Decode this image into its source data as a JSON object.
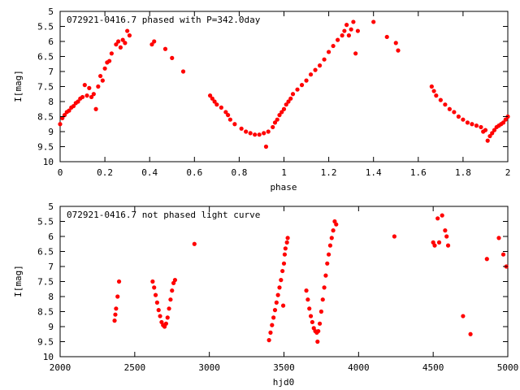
{
  "chart_data": [
    {
      "type": "scatter",
      "title": "072921-0416.7 phased with P=342.0day",
      "xlabel": "phase",
      "ylabel": "I[mag]",
      "xlim": [
        0,
        2
      ],
      "ylim": [
        10,
        5
      ],
      "y_inverted": true,
      "grid": false,
      "marker_color": "#ff0000",
      "x_ticks": [
        "0",
        "0.2",
        "0.4",
        "0.6",
        "0.8",
        "1",
        "1.2",
        "1.4",
        "1.6",
        "1.8",
        "2"
      ],
      "y_ticks": [
        "5",
        "5.5",
        "6",
        "6.5",
        "7",
        "7.5",
        "8",
        "8.5",
        "9",
        "9.5",
        "10"
      ],
      "series": [
        {
          "points": [
            [
              0.0,
              8.75
            ],
            [
              0.01,
              8.55
            ],
            [
              0.02,
              8.45
            ],
            [
              0.03,
              8.35
            ],
            [
              0.04,
              8.3
            ],
            [
              0.05,
              8.2
            ],
            [
              0.06,
              8.15
            ],
            [
              0.07,
              8.05
            ],
            [
              0.08,
              8.0
            ],
            [
              0.09,
              7.9
            ],
            [
              0.1,
              7.85
            ],
            [
              0.11,
              7.45
            ],
            [
              0.12,
              7.8
            ],
            [
              0.13,
              7.55
            ],
            [
              0.14,
              7.85
            ],
            [
              0.15,
              7.75
            ],
            [
              0.16,
              8.25
            ],
            [
              0.17,
              7.5
            ],
            [
              0.18,
              7.15
            ],
            [
              0.19,
              7.3
            ],
            [
              0.2,
              6.9
            ],
            [
              0.21,
              6.7
            ],
            [
              0.22,
              6.65
            ],
            [
              0.23,
              6.4
            ],
            [
              0.25,
              6.1
            ],
            [
              0.26,
              6.0
            ],
            [
              0.27,
              6.2
            ],
            [
              0.28,
              5.95
            ],
            [
              0.29,
              6.05
            ],
            [
              0.3,
              5.65
            ],
            [
              0.31,
              5.8
            ],
            [
              0.41,
              6.1
            ],
            [
              0.42,
              6.0
            ],
            [
              0.47,
              6.25
            ],
            [
              0.5,
              6.55
            ],
            [
              0.55,
              7.0
            ],
            [
              0.67,
              7.8
            ],
            [
              0.68,
              7.9
            ],
            [
              0.69,
              8.0
            ],
            [
              0.7,
              8.1
            ],
            [
              0.72,
              8.2
            ],
            [
              0.74,
              8.35
            ],
            [
              0.75,
              8.45
            ],
            [
              0.76,
              8.6
            ],
            [
              0.78,
              8.75
            ],
            [
              0.81,
              8.9
            ],
            [
              0.83,
              9.0
            ],
            [
              0.85,
              9.05
            ],
            [
              0.87,
              9.1
            ],
            [
              0.89,
              9.1
            ],
            [
              0.91,
              9.05
            ],
            [
              0.92,
              9.5
            ],
            [
              0.93,
              9.0
            ],
            [
              0.95,
              8.85
            ],
            [
              0.96,
              8.7
            ],
            [
              0.97,
              8.6
            ],
            [
              0.98,
              8.45
            ],
            [
              0.99,
              8.35
            ],
            [
              1.0,
              8.25
            ],
            [
              1.01,
              8.1
            ],
            [
              1.02,
              8.0
            ],
            [
              1.03,
              7.9
            ],
            [
              1.04,
              7.75
            ],
            [
              1.06,
              7.6
            ],
            [
              1.08,
              7.45
            ],
            [
              1.1,
              7.3
            ],
            [
              1.12,
              7.1
            ],
            [
              1.14,
              6.95
            ],
            [
              1.16,
              6.8
            ],
            [
              1.18,
              6.6
            ],
            [
              1.2,
              6.35
            ],
            [
              1.22,
              6.15
            ],
            [
              1.24,
              5.95
            ],
            [
              1.26,
              5.8
            ],
            [
              1.27,
              5.65
            ],
            [
              1.28,
              5.45
            ],
            [
              1.29,
              5.8
            ],
            [
              1.3,
              5.6
            ],
            [
              1.31,
              5.35
            ],
            [
              1.32,
              6.4
            ],
            [
              1.33,
              5.65
            ],
            [
              1.4,
              5.35
            ],
            [
              1.46,
              5.85
            ],
            [
              1.5,
              6.05
            ],
            [
              1.51,
              6.3
            ],
            [
              1.66,
              7.5
            ],
            [
              1.67,
              7.65
            ],
            [
              1.68,
              7.8
            ],
            [
              1.7,
              7.95
            ],
            [
              1.72,
              8.1
            ],
            [
              1.74,
              8.25
            ],
            [
              1.76,
              8.35
            ],
            [
              1.78,
              8.5
            ],
            [
              1.8,
              8.6
            ],
            [
              1.82,
              8.7
            ],
            [
              1.84,
              8.75
            ],
            [
              1.86,
              8.8
            ],
            [
              1.88,
              8.85
            ],
            [
              1.89,
              9.0
            ],
            [
              1.9,
              8.95
            ],
            [
              1.91,
              9.3
            ],
            [
              1.92,
              9.15
            ],
            [
              1.93,
              9.05
            ],
            [
              1.94,
              8.95
            ],
            [
              1.95,
              8.85
            ],
            [
              1.96,
              8.8
            ],
            [
              1.97,
              8.75
            ],
            [
              1.98,
              8.7
            ],
            [
              1.99,
              8.6
            ],
            [
              2.0,
              8.5
            ]
          ]
        }
      ]
    },
    {
      "type": "scatter",
      "title": "072921-0416.7 not phased light curve",
      "xlabel": "hjd0",
      "ylabel": "I[mag]",
      "xlim": [
        2000,
        5000
      ],
      "ylim": [
        10,
        5
      ],
      "y_inverted": true,
      "grid": false,
      "marker_color": "#ff0000",
      "x_ticks": [
        "2000",
        "2500",
        "3000",
        "3500",
        "4000",
        "4500",
        "5000"
      ],
      "y_ticks": [
        "5",
        "5.5",
        "6",
        "6.5",
        "7",
        "7.5",
        "8",
        "8.5",
        "9",
        "9.5",
        "10"
      ],
      "series": [
        {
          "points": [
            [
              2365,
              8.8
            ],
            [
              2370,
              8.6
            ],
            [
              2375,
              8.4
            ],
            [
              2385,
              8.0
            ],
            [
              2395,
              7.5
            ],
            [
              2620,
              7.5
            ],
            [
              2630,
              7.7
            ],
            [
              2640,
              7.95
            ],
            [
              2650,
              8.2
            ],
            [
              2660,
              8.45
            ],
            [
              2670,
              8.65
            ],
            [
              2680,
              8.85
            ],
            [
              2690,
              8.95
            ],
            [
              2700,
              9.0
            ],
            [
              2710,
              8.9
            ],
            [
              2720,
              8.7
            ],
            [
              2730,
              8.4
            ],
            [
              2740,
              8.1
            ],
            [
              2750,
              7.8
            ],
            [
              2760,
              7.55
            ],
            [
              2770,
              7.45
            ],
            [
              2900,
              6.25
            ],
            [
              3400,
              9.45
            ],
            [
              3410,
              9.2
            ],
            [
              3420,
              8.95
            ],
            [
              3430,
              8.7
            ],
            [
              3440,
              8.45
            ],
            [
              3450,
              8.2
            ],
            [
              3460,
              7.95
            ],
            [
              3470,
              7.7
            ],
            [
              3480,
              7.45
            ],
            [
              3490,
              7.15
            ],
            [
              3495,
              8.3
            ],
            [
              3500,
              6.9
            ],
            [
              3505,
              6.6
            ],
            [
              3510,
              6.4
            ],
            [
              3520,
              6.2
            ],
            [
              3525,
              6.05
            ],
            [
              3650,
              7.8
            ],
            [
              3660,
              8.1
            ],
            [
              3670,
              8.4
            ],
            [
              3680,
              8.65
            ],
            [
              3690,
              8.85
            ],
            [
              3700,
              9.05
            ],
            [
              3710,
              9.15
            ],
            [
              3720,
              9.2
            ],
            [
              3725,
              9.5
            ],
            [
              3730,
              9.15
            ],
            [
              3740,
              8.9
            ],
            [
              3750,
              8.5
            ],
            [
              3760,
              8.1
            ],
            [
              3770,
              7.7
            ],
            [
              3780,
              7.3
            ],
            [
              3790,
              6.9
            ],
            [
              3800,
              6.6
            ],
            [
              3810,
              6.3
            ],
            [
              3820,
              6.05
            ],
            [
              3830,
              5.8
            ],
            [
              3840,
              5.5
            ],
            [
              3850,
              5.6
            ],
            [
              4240,
              6.0
            ],
            [
              4500,
              6.2
            ],
            [
              4510,
              6.3
            ],
            [
              4530,
              5.4
            ],
            [
              4540,
              6.2
            ],
            [
              4560,
              5.3
            ],
            [
              4580,
              5.8
            ],
            [
              4590,
              6.0
            ],
            [
              4600,
              6.3
            ],
            [
              4700,
              8.65
            ],
            [
              4750,
              9.25
            ],
            [
              4860,
              6.75
            ],
            [
              4940,
              6.05
            ],
            [
              4970,
              6.6
            ],
            [
              4990,
              7.0
            ]
          ]
        }
      ]
    }
  ]
}
